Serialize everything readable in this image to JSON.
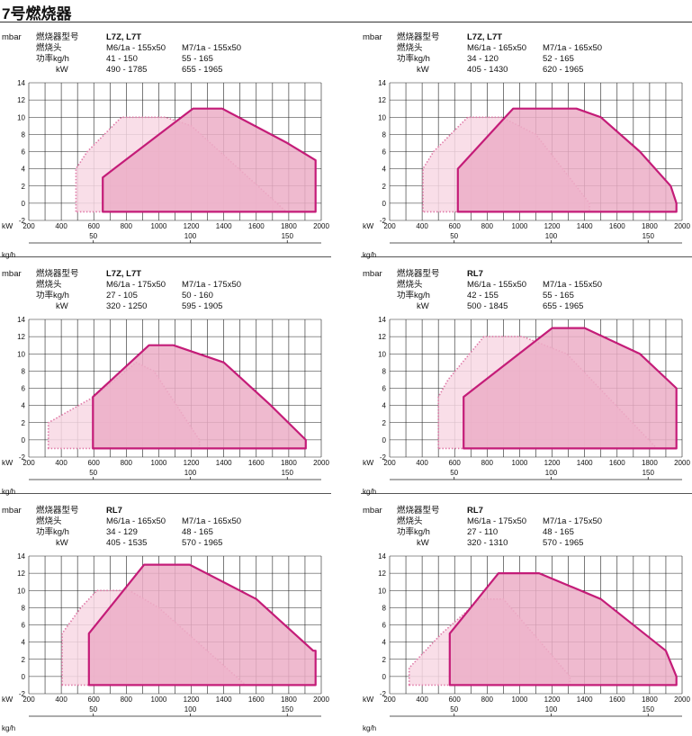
{
  "page": {
    "title": "7号燃烧器"
  },
  "colors": {
    "inner_fill": "#ecaec7",
    "inner_stroke": "#c41c78",
    "outer_fill": "#f8d8e4",
    "outer_stroke": "#e07aa8",
    "grid": "#222222"
  },
  "labels": {
    "y_unit": "mbar",
    "model": "燃烧器型号",
    "head": "燃烧头",
    "power": "功率kg/h",
    "kw": "kW",
    "x_axis_kw": "kW",
    "x_axis_kgh": "kg/h"
  },
  "chart_data": [
    {
      "type": "area",
      "model": "L7Z, L7T",
      "columns": [
        {
          "head": "M6/1a - 155x50",
          "kgh": "41 - 150",
          "kw": "490 - 1785"
        },
        {
          "head": "M7/1a - 155x50",
          "kgh": "55 - 165",
          "kw": "655 - 1965"
        }
      ],
      "xlim": [
        200,
        2000
      ],
      "ylim": [
        -2,
        14
      ],
      "x_ticks": [
        200,
        400,
        600,
        800,
        1000,
        1200,
        1400,
        1600,
        1800,
        2000
      ],
      "y_ticks": [
        14,
        12,
        10,
        8,
        6,
        4,
        2,
        0,
        -2
      ],
      "kgh_ticks": [
        50,
        100,
        150
      ],
      "series": [
        {
          "style": "outer",
          "points": [
            [
              490,
              -1
            ],
            [
              490,
              4
            ],
            [
              560,
              6
            ],
            [
              770,
              10
            ],
            [
              1040,
              10
            ],
            [
              1200,
              9
            ],
            [
              1785,
              -1
            ]
          ]
        },
        {
          "style": "inner",
          "points": [
            [
              655,
              -1
            ],
            [
              655,
              3
            ],
            [
              1210,
              11
            ],
            [
              1390,
              11
            ],
            [
              1790,
              7
            ],
            [
              1965,
              5
            ],
            [
              1965,
              -1
            ]
          ]
        }
      ]
    },
    {
      "type": "area",
      "model": "L7Z, L7T",
      "columns": [
        {
          "head": "M6/1a - 165x50",
          "kgh": "34 - 120",
          "kw": "405 - 1430"
        },
        {
          "head": "M7/1a - 165x50",
          "kgh": "52 - 165",
          "kw": "620 - 1965"
        }
      ],
      "xlim": [
        200,
        2000
      ],
      "ylim": [
        -2,
        14
      ],
      "x_ticks": [
        200,
        400,
        600,
        800,
        1000,
        1200,
        1400,
        1600,
        1800,
        2000
      ],
      "y_ticks": [
        14,
        12,
        10,
        8,
        6,
        4,
        2,
        0,
        -2
      ],
      "kgh_ticks": [
        50,
        100,
        150
      ],
      "series": [
        {
          "style": "outer",
          "points": [
            [
              405,
              -1
            ],
            [
              405,
              4
            ],
            [
              470,
              6
            ],
            [
              680,
              10
            ],
            [
              890,
              10
            ],
            [
              1100,
              8
            ],
            [
              1430,
              0
            ],
            [
              1430,
              -1
            ]
          ]
        },
        {
          "style": "inner",
          "points": [
            [
              620,
              -1
            ],
            [
              620,
              4
            ],
            [
              960,
              11
            ],
            [
              1350,
              11
            ],
            [
              1500,
              10
            ],
            [
              1740,
              6
            ],
            [
              1930,
              2
            ],
            [
              1965,
              0
            ],
            [
              1965,
              -1
            ]
          ]
        }
      ]
    },
    {
      "type": "area",
      "model": "L7Z, L7T",
      "columns": [
        {
          "head": "M6/1a - 175x50",
          "kgh": "27 - 105",
          "kw": "320 - 1250"
        },
        {
          "head": "M7/1a - 175x50",
          "kgh": "50 - 160",
          "kw": "595 - 1905"
        }
      ],
      "xlim": [
        200,
        2000
      ],
      "ylim": [
        -2,
        14
      ],
      "x_ticks": [
        200,
        400,
        600,
        800,
        1000,
        1200,
        1400,
        1600,
        1800,
        2000
      ],
      "y_ticks": [
        14,
        12,
        10,
        8,
        6,
        4,
        2,
        0,
        -2
      ],
      "kgh_ticks": [
        50,
        100,
        150
      ],
      "series": [
        {
          "style": "outer",
          "points": [
            [
              320,
              -1
            ],
            [
              320,
              2
            ],
            [
              600,
              5
            ],
            [
              800,
              8
            ],
            [
              860,
              9
            ],
            [
              970,
              8
            ],
            [
              1250,
              0
            ],
            [
              1250,
              -1
            ]
          ]
        },
        {
          "style": "inner",
          "points": [
            [
              595,
              -1
            ],
            [
              595,
              5
            ],
            [
              940,
              11
            ],
            [
              1090,
              11
            ],
            [
              1400,
              9
            ],
            [
              1690,
              4
            ],
            [
              1905,
              0
            ],
            [
              1905,
              -1
            ]
          ]
        }
      ]
    },
    {
      "type": "area",
      "model": "RL7",
      "columns": [
        {
          "head": "M6/1a - 155x50",
          "kgh": "42 - 155",
          "kw": "500 - 1845"
        },
        {
          "head": "M7/1a - 155x50",
          "kgh": "55 - 165",
          "kw": "655 - 1965"
        }
      ],
      "xlim": [
        200,
        2000
      ],
      "ylim": [
        -2,
        14
      ],
      "x_ticks": [
        200,
        400,
        600,
        800,
        1000,
        1200,
        1400,
        1600,
        1800,
        2000
      ],
      "y_ticks": [
        14,
        12,
        10,
        8,
        6,
        4,
        2,
        0,
        -2
      ],
      "kgh_ticks": [
        50,
        100,
        150
      ],
      "series": [
        {
          "style": "outer",
          "points": [
            [
              500,
              -1
            ],
            [
              500,
              5
            ],
            [
              560,
              7
            ],
            [
              780,
              12
            ],
            [
              1020,
              12
            ],
            [
              1290,
              10
            ],
            [
              1845,
              -1
            ]
          ]
        },
        {
          "style": "inner",
          "points": [
            [
              655,
              -1
            ],
            [
              655,
              5
            ],
            [
              1200,
              13
            ],
            [
              1400,
              13
            ],
            [
              1740,
              10
            ],
            [
              1965,
              6
            ],
            [
              1965,
              -1
            ]
          ]
        }
      ]
    },
    {
      "type": "area",
      "model": "RL7",
      "columns": [
        {
          "head": "M6/1a - 165x50",
          "kgh": "34 - 129",
          "kw": "405 - 1535"
        },
        {
          "head": "M7/1a - 165x50",
          "kgh": "48 - 165",
          "kw": "570 - 1965"
        }
      ],
      "xlim": [
        200,
        2000
      ],
      "ylim": [
        -2,
        14
      ],
      "x_ticks": [
        200,
        400,
        600,
        800,
        1000,
        1200,
        1400,
        1600,
        1800,
        2000
      ],
      "y_ticks": [
        14,
        12,
        10,
        8,
        6,
        4,
        2,
        0,
        -2
      ],
      "kgh_ticks": [
        50,
        100,
        150
      ],
      "series": [
        {
          "style": "outer",
          "points": [
            [
              405,
              -1
            ],
            [
              405,
              5
            ],
            [
              520,
              8
            ],
            [
              620,
              10
            ],
            [
              820,
              10
            ],
            [
              1000,
              8
            ],
            [
              1535,
              -1
            ]
          ]
        },
        {
          "style": "inner",
          "points": [
            [
              570,
              -1
            ],
            [
              570,
              5
            ],
            [
              910,
              13
            ],
            [
              1190,
              13
            ],
            [
              1600,
              9
            ],
            [
              1950,
              3
            ],
            [
              1965,
              3
            ],
            [
              1965,
              -1
            ]
          ]
        }
      ]
    },
    {
      "type": "area",
      "model": "RL7",
      "columns": [
        {
          "head": "M6/1a - 175x50",
          "kgh": "27 - 110",
          "kw": "320 - 1310"
        },
        {
          "head": "M7/1a - 175x50",
          "kgh": "48 - 165",
          "kw": "570 - 1965"
        }
      ],
      "xlim": [
        200,
        2000
      ],
      "ylim": [
        -2,
        14
      ],
      "x_ticks": [
        200,
        400,
        600,
        800,
        1000,
        1200,
        1400,
        1600,
        1800,
        2000
      ],
      "y_ticks": [
        14,
        12,
        10,
        8,
        6,
        4,
        2,
        0,
        -2
      ],
      "kgh_ticks": [
        50,
        100,
        150
      ],
      "series": [
        {
          "style": "outer",
          "points": [
            [
              320,
              -1
            ],
            [
              320,
              1
            ],
            [
              520,
              5
            ],
            [
              760,
              9
            ],
            [
              900,
              9
            ],
            [
              1310,
              0
            ],
            [
              1310,
              -1
            ]
          ]
        },
        {
          "style": "inner",
          "points": [
            [
              570,
              -1
            ],
            [
              570,
              5
            ],
            [
              870,
              12
            ],
            [
              1120,
              12
            ],
            [
              1500,
              9
            ],
            [
              1900,
              3
            ],
            [
              1965,
              0
            ],
            [
              1965,
              -1
            ]
          ]
        }
      ]
    }
  ]
}
